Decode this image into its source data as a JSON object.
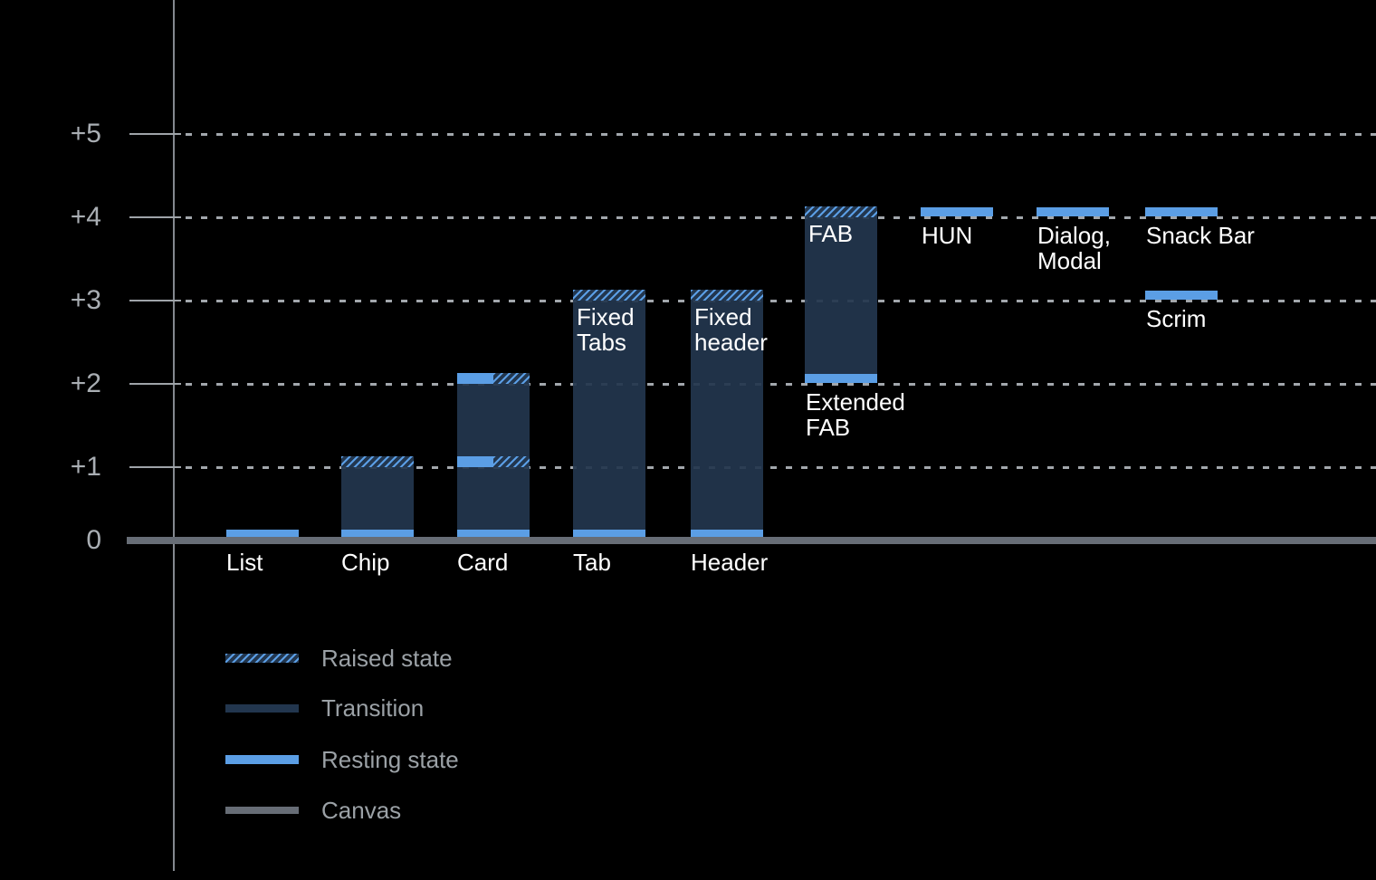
{
  "colors": {
    "background": "#000000",
    "resting_blue": "#5B9EE5",
    "transition_navy": "#22364E",
    "canvas_gray": "#676D76",
    "axis_text": "#A9AEB3",
    "legend_text": "#9BA1A6",
    "bar_label_text": "#FFFFFF",
    "gridline": "#A2A7AC",
    "axis_line": "#84898F"
  },
  "chart_data": {
    "type": "bar",
    "title": "",
    "ylabel": "",
    "ylim": [
      0,
      5
    ],
    "grid": "dotted",
    "y_axis": {
      "tick_labels": [
        "+5",
        "+4",
        "+3",
        "+2",
        "+1",
        "0"
      ]
    },
    "legend": {
      "position": "bottom-left",
      "items": [
        {
          "label": "Raised state",
          "swatch": "hatch"
        },
        {
          "label": "Transition",
          "swatch": "navy"
        },
        {
          "label": "Resting state",
          "swatch": "blue"
        },
        {
          "label": "Canvas",
          "swatch": "gray"
        }
      ]
    },
    "components": [
      {
        "name": "list",
        "axis_label": "List",
        "resting": [
          0
        ]
      },
      {
        "name": "chip",
        "axis_label": "Chip",
        "resting": [
          0
        ],
        "transition": [
          0,
          1
        ],
        "raised": [
          1
        ]
      },
      {
        "name": "card",
        "axis_label": "Card",
        "resting": [
          0
        ],
        "transition": [
          0,
          2
        ],
        "split_bands": [
          1,
          2
        ]
      },
      {
        "name": "tab",
        "axis_label": "Tab",
        "inner_label": [
          "Fixed",
          "Tabs"
        ],
        "resting": [
          0
        ],
        "transition": [
          0,
          3
        ],
        "raised": [
          3
        ]
      },
      {
        "name": "header",
        "axis_label": "Header",
        "inner_label": [
          "Fixed",
          "header"
        ],
        "resting": [
          0
        ],
        "transition": [
          0,
          3
        ],
        "raised": [
          3
        ]
      },
      {
        "name": "fab",
        "inner_label": [
          "FAB"
        ],
        "below_label": [
          "Extended",
          "FAB"
        ],
        "resting": [
          2
        ],
        "transition": [
          2,
          4
        ],
        "raised": [
          4
        ]
      },
      {
        "name": "hun",
        "below_label": [
          "HUN"
        ],
        "resting": [
          4
        ]
      },
      {
        "name": "dialog-modal",
        "below_label": [
          "Dialog,",
          "Modal"
        ],
        "resting": [
          4
        ]
      },
      {
        "name": "snack-bar",
        "below_label": [
          "Snack Bar"
        ],
        "resting": [
          4
        ]
      },
      {
        "name": "scrim",
        "below_label": [
          "Scrim"
        ],
        "resting": [
          3
        ]
      }
    ]
  }
}
